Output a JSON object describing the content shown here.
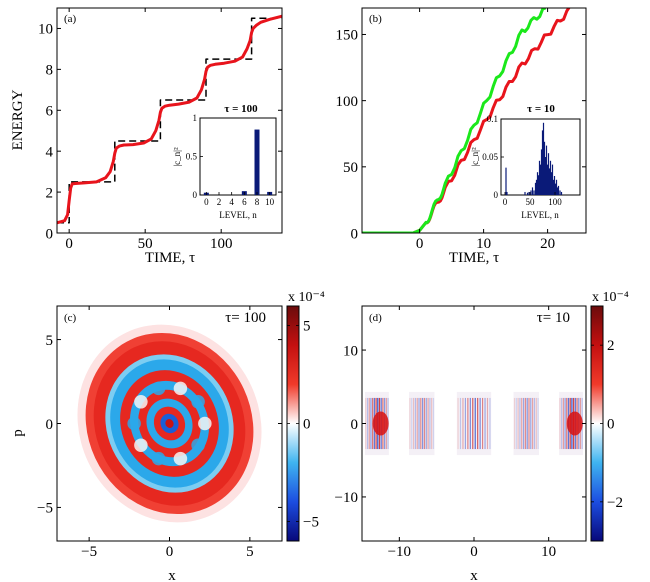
{
  "chart_data": [
    {
      "id": "a",
      "type": "line",
      "panel_label": "(a)",
      "xlabel": "TIME, τ",
      "ylabel": "ENERGY",
      "xlim": [
        -8,
        140
      ],
      "ylim": [
        0,
        11
      ],
      "xticks": [
        0,
        50,
        100
      ],
      "yticks": [
        0,
        2,
        4,
        6,
        8,
        10
      ],
      "series": [
        {
          "color": "#e8141c",
          "style": "solid",
          "x": [
            -8,
            -3,
            -1,
            0,
            1,
            2,
            4,
            10,
            18,
            24,
            27,
            29,
            30,
            31,
            33,
            36,
            42,
            49,
            54,
            57,
            59,
            60,
            61,
            63,
            66,
            72,
            79,
            84,
            87,
            89,
            90,
            91,
            93,
            96,
            102,
            109,
            114,
            117,
            119,
            120,
            121,
            123,
            126,
            132,
            140
          ],
          "y": [
            0.5,
            0.6,
            0.9,
            1.6,
            2.2,
            2.4,
            2.42,
            2.45,
            2.5,
            2.7,
            3.0,
            3.5,
            3.9,
            4.15,
            4.25,
            4.3,
            4.32,
            4.4,
            4.6,
            5.0,
            5.5,
            5.9,
            6.1,
            6.2,
            6.25,
            6.3,
            6.4,
            6.6,
            7.0,
            7.5,
            7.9,
            8.1,
            8.2,
            8.25,
            8.3,
            8.4,
            8.6,
            9.0,
            9.4,
            9.8,
            10.0,
            10.15,
            10.3,
            10.45,
            10.6
          ]
        },
        {
          "color": "#000000",
          "style": "dashed",
          "x": [
            -8,
            0,
            0,
            30,
            30,
            60,
            60,
            90,
            90,
            120,
            120,
            140
          ],
          "y": [
            0.5,
            0.5,
            2.5,
            2.5,
            4.5,
            4.5,
            6.5,
            6.5,
            8.5,
            8.5,
            10.5,
            10.5
          ]
        }
      ],
      "inset": {
        "type": "bar",
        "title": "τ = 100",
        "xlabel": "LEVEL, n",
        "ylabel": "|c_n|²",
        "xlim": [
          -1,
          11
        ],
        "ylim": [
          0,
          1
        ],
        "xticks": [
          0,
          2,
          4,
          6,
          8,
          10
        ],
        "yticks": [
          0,
          0.5,
          1
        ],
        "color": "#0a1a78",
        "x": [
          0,
          2,
          4,
          6,
          8,
          10
        ],
        "values": [
          0.03,
          0.0,
          0.0,
          0.05,
          0.85,
          0.04
        ]
      }
    },
    {
      "id": "b",
      "type": "line",
      "panel_label": "(b)",
      "xlabel": "TIME, τ",
      "ylabel": "",
      "xlim": [
        -9,
        26
      ],
      "ylim": [
        0,
        170
      ],
      "xticks": [
        0,
        10,
        20
      ],
      "yticks": [
        0,
        50,
        100,
        150
      ],
      "series": [
        {
          "color": "#e8141c",
          "x": [
            -9,
            -1,
            0,
            1,
            2,
            4,
            8,
            12,
            16,
            20,
            24
          ],
          "y": [
            0,
            0,
            2,
            8,
            16,
            33,
            66,
            98,
            127,
            150,
            172
          ]
        },
        {
          "color": "#1be81b",
          "x": [
            -9,
            -1,
            0,
            1,
            2,
            4,
            8,
            12,
            16,
            19.7
          ],
          "y": [
            0,
            0,
            2,
            8,
            17,
            36,
            76,
            115,
            152,
            170
          ]
        }
      ],
      "inset": {
        "type": "bar",
        "title": "τ = 10",
        "xlabel": "LEVEL, n",
        "ylabel": "|c_n|²",
        "xlim": [
          -8,
          150
        ],
        "ylim": [
          0,
          0.1
        ],
        "xticks": [
          0,
          50,
          100
        ],
        "yticks": [
          0,
          0.05,
          0.1
        ],
        "color": "#0a1a78",
        "x": [
          2,
          4,
          40,
          45,
          48,
          52,
          55,
          58,
          61,
          63,
          65,
          67,
          69,
          71,
          73,
          75,
          77,
          79,
          81,
          83,
          85,
          87,
          89,
          91,
          93,
          95,
          97,
          99,
          101,
          103,
          105,
          107,
          110,
          113
        ],
        "values": [
          0.036,
          0.004,
          0.004,
          0.003,
          0.004,
          0.006,
          0.01,
          0.006,
          0.016,
          0.02,
          0.03,
          0.026,
          0.045,
          0.04,
          0.06,
          0.085,
          0.095,
          0.07,
          0.05,
          0.065,
          0.04,
          0.055,
          0.035,
          0.045,
          0.03,
          0.04,
          0.02,
          0.025,
          0.015,
          0.02,
          0.01,
          0.012,
          0.006,
          0.004
        ]
      }
    },
    {
      "id": "c",
      "type": "heatmap",
      "panel_label": "(c)",
      "annotation": "τ= 100",
      "xlabel": "x",
      "ylabel": "p",
      "xlim": [
        -7,
        7
      ],
      "ylim": [
        -7,
        7
      ],
      "xticks": [
        -5,
        0,
        5
      ],
      "yticks": [
        -5,
        0,
        5
      ],
      "colorbar": {
        "multiplier": "x 10⁻⁴",
        "range": [
          -6,
          6
        ],
        "ticks": [
          -5,
          0,
          5
        ],
        "colors": [
          "#08087a",
          "#1c4de0",
          "#3fb4f0",
          "#ffffff",
          "#f03a2a",
          "#c41010",
          "#6b0b0b"
        ]
      }
    },
    {
      "id": "d",
      "type": "heatmap",
      "panel_label": "(d)",
      "annotation": "τ= 10",
      "xlabel": "x",
      "ylabel": "",
      "xlim": [
        -15,
        15
      ],
      "ylim": [
        -16,
        16
      ],
      "xticks": [
        -10,
        0,
        10
      ],
      "yticks": [
        -10,
        0,
        10
      ],
      "colorbar": {
        "multiplier": "x 10⁻⁴",
        "range": [
          -3,
          3
        ],
        "ticks": [
          -2,
          0,
          2
        ],
        "colors": [
          "#08087a",
          "#1c4de0",
          "#3fb4f0",
          "#ffffff",
          "#f03a2a",
          "#c41010",
          "#6b0b0b"
        ]
      }
    }
  ]
}
